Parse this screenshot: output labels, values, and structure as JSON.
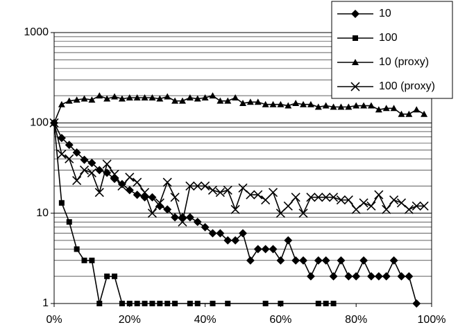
{
  "chart_data": {
    "type": "line",
    "log_y": true,
    "grid": true,
    "legend": "top-right",
    "xlim": [
      0,
      100
    ],
    "xticks": [
      {
        "value": 0,
        "label": "0%"
      },
      {
        "value": 20,
        "label": "20%"
      },
      {
        "value": 40,
        "label": "40%"
      },
      {
        "value": 60,
        "label": "60%"
      },
      {
        "value": 80,
        "label": "80%"
      },
      {
        "value": 100,
        "label": "100%"
      }
    ],
    "ylim": [
      1,
      1000
    ],
    "yticks": [
      1,
      10,
      100,
      1000
    ],
    "series": [
      {
        "name": "10",
        "color": "#000000",
        "marker": "diamond",
        "x": [
          0,
          2,
          4,
          6,
          8,
          10,
          12,
          14,
          16,
          18,
          20,
          22,
          24,
          26,
          28,
          30,
          32,
          34,
          36,
          38,
          40,
          42,
          44,
          46,
          48,
          50,
          52,
          54,
          56,
          58,
          60,
          62,
          64,
          66,
          68,
          70,
          72,
          74,
          76,
          78,
          80,
          82,
          84,
          86,
          88,
          90,
          92,
          94,
          96
        ],
        "values": [
          100,
          68,
          57,
          47,
          39,
          36,
          30,
          28,
          24,
          21,
          18,
          16,
          15,
          15,
          12,
          11,
          9,
          9,
          9,
          8,
          7,
          6,
          6,
          5,
          5,
          6,
          3,
          4,
          4,
          4,
          3,
          5,
          3,
          3,
          2,
          3,
          3,
          2,
          3,
          2,
          2,
          3,
          2,
          2,
          2,
          3,
          2,
          2,
          1
        ]
      },
      {
        "name": "100",
        "color": "#000000",
        "marker": "square",
        "x": [
          0,
          2,
          4,
          6,
          8,
          10,
          12,
          14,
          16,
          18,
          20,
          22,
          24,
          26,
          28,
          30,
          32,
          36,
          38,
          42,
          46,
          56,
          60,
          70,
          72,
          74
        ],
        "values": [
          100,
          13,
          8,
          4,
          3,
          3,
          1,
          2,
          2,
          1,
          1,
          1,
          1,
          1,
          1,
          1,
          1,
          1,
          1,
          1,
          1,
          1,
          1,
          1,
          1,
          1
        ]
      },
      {
        "name": "10 (proxy)",
        "color": "#000000",
        "marker": "triangle",
        "x": [
          0,
          2,
          4,
          6,
          8,
          10,
          12,
          14,
          16,
          18,
          20,
          22,
          24,
          26,
          28,
          30,
          32,
          34,
          36,
          38,
          40,
          42,
          44,
          46,
          48,
          50,
          52,
          54,
          56,
          58,
          60,
          62,
          64,
          66,
          68,
          70,
          72,
          74,
          76,
          78,
          80,
          82,
          84,
          86,
          88,
          90,
          92,
          94,
          96,
          98
        ],
        "values": [
          100,
          160,
          175,
          180,
          185,
          180,
          200,
          185,
          195,
          185,
          190,
          190,
          190,
          190,
          185,
          195,
          175,
          175,
          190,
          185,
          190,
          200,
          175,
          175,
          190,
          165,
          170,
          170,
          160,
          160,
          160,
          155,
          165,
          160,
          160,
          150,
          155,
          150,
          150,
          150,
          155,
          155,
          155,
          140,
          145,
          145,
          125,
          125,
          140,
          125
        ]
      },
      {
        "name": "100 (proxy)",
        "color": "#000000",
        "marker": "x",
        "x": [
          0,
          2,
          4,
          6,
          8,
          10,
          12,
          14,
          16,
          18,
          20,
          22,
          24,
          26,
          28,
          30,
          32,
          34,
          36,
          38,
          40,
          42,
          44,
          46,
          48,
          50,
          52,
          54,
          56,
          58,
          60,
          62,
          64,
          66,
          68,
          70,
          72,
          74,
          76,
          78,
          80,
          82,
          84,
          86,
          88,
          90,
          92,
          94,
          96,
          98
        ],
        "values": [
          100,
          45,
          40,
          23,
          30,
          28,
          17,
          35,
          27,
          20,
          25,
          22,
          17,
          10,
          13,
          22,
          15,
          8,
          20,
          20,
          20,
          18,
          17,
          18,
          11,
          19,
          16,
          16,
          14,
          17,
          10,
          12,
          15,
          10,
          15,
          15,
          15,
          15,
          14,
          14,
          11,
          13,
          12,
          16,
          11,
          14,
          13,
          11,
          12,
          12
        ]
      }
    ]
  }
}
